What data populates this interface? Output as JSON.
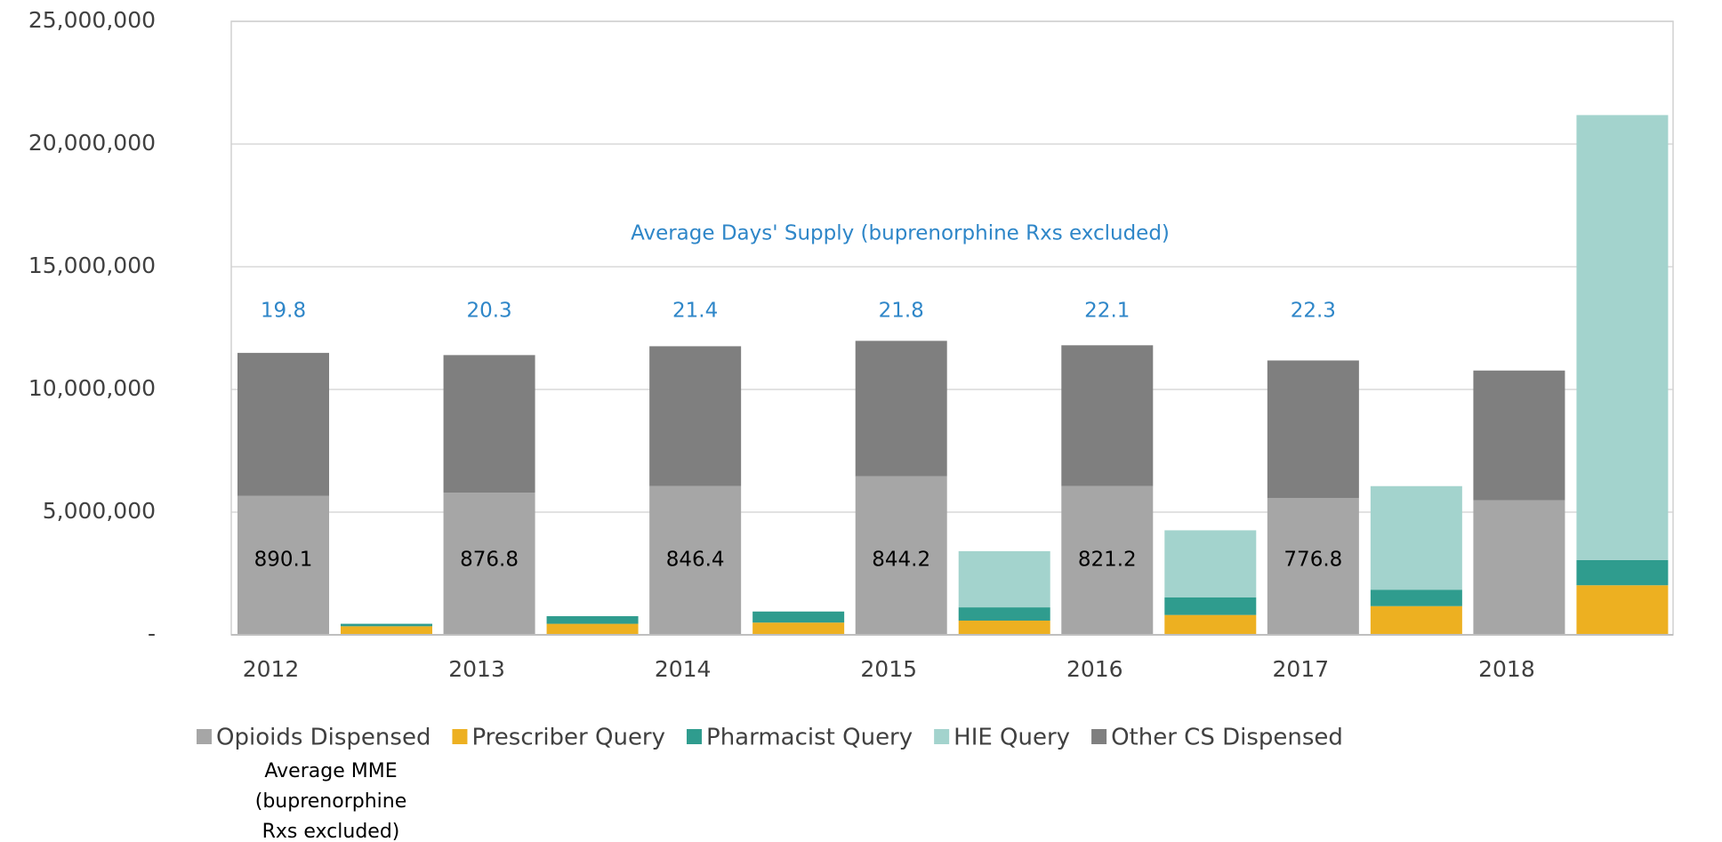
{
  "chart_data": {
    "type": "bar",
    "stacked": true,
    "categories": [
      "2012",
      "2013",
      "2014",
      "2015",
      "2016",
      "2017",
      "2018"
    ],
    "series": [
      {
        "name": "Opioids Dispensed",
        "color": "#a6a6a6",
        "stack": "dispensed",
        "values": [
          5660000.0,
          5790000.0,
          6060000.0,
          6460000.0,
          6060000.0,
          5570000.0,
          5480000.0
        ]
      },
      {
        "name": "Prescriber Query",
        "color": "#edb021",
        "stack": "query",
        "values": [
          350000.0,
          450000.0,
          500000.0,
          580000.0,
          810000.0,
          1170000.0,
          2020000.0
        ]
      },
      {
        "name": "Pharmacist Query",
        "color": "#2f9c8e",
        "stack": "query",
        "values": [
          100000.0,
          310000.0,
          450000.0,
          540000.0,
          720000.0,
          670000.0,
          1030000.0
        ]
      },
      {
        "name": "HIE Query",
        "color": "#a3d3cd",
        "stack": "query",
        "values": [
          0,
          0,
          0,
          2290000.0,
          2730000.0,
          4220000.0,
          18130000.0
        ]
      },
      {
        "name": "Other CS Dispensed",
        "color": "#7f7f7f",
        "stack": "dispensed",
        "values": [
          5830000.0,
          5610000.0,
          5700000.0,
          5520000.0,
          5740000.0,
          5610000.0,
          5290000.0
        ]
      }
    ],
    "ylim": [
      0,
      25000000
    ],
    "yticks": [
      {
        "value": 0,
        "label": "-"
      },
      {
        "value": 5000000,
        "label": "5,000,000"
      },
      {
        "value": 10000000,
        "label": "10,000,000"
      },
      {
        "value": 15000000,
        "label": "15,000,000"
      },
      {
        "value": 20000000,
        "label": "20,000,000"
      },
      {
        "value": 25000000,
        "label": "25,000,000"
      }
    ],
    "grid": true,
    "legend": "bottom",
    "days_supply": {
      "title": "Average Days' Supply (buprenorphine Rxs excluded)",
      "values": [
        19.8,
        20.3,
        21.4,
        21.8,
        22.1,
        22.3,
        null
      ]
    },
    "mme": {
      "title_lines": [
        "Average MME",
        "(buprenorphine",
        "Rxs excluded)"
      ],
      "values": [
        890.1,
        876.8,
        846.4,
        844.2,
        821.2,
        776.8,
        null
      ]
    }
  }
}
